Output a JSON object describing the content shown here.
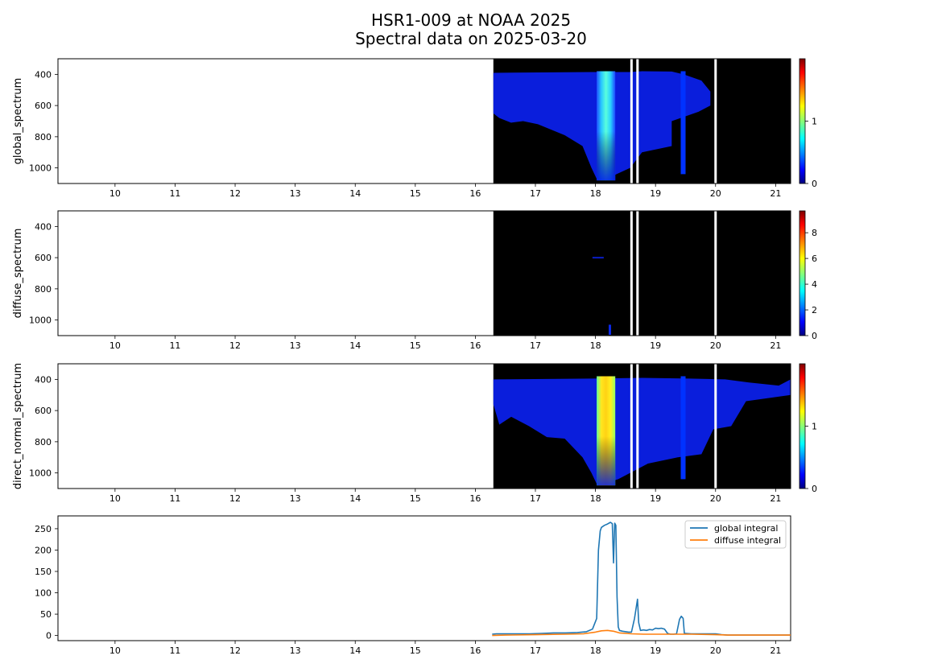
{
  "title_line1": "HSR1-009 at NOAA 2025",
  "title_line2": "Spectral data on 2025-03-20",
  "colors": {
    "data_black": "#000000",
    "spectrum_blue": "#0a1edc",
    "spectrum_cyan": "#1ed2ff",
    "spectrum_yellow": "#ffd21e",
    "global_integral": "#1f77b4",
    "diffuse_integral": "#ff7f0e"
  },
  "chart_data": [
    {
      "type": "heatmap",
      "ylabel": "global_spectrum",
      "x_ticks": [
        "10",
        "11",
        "12",
        "13",
        "14",
        "15",
        "16",
        "17",
        "18",
        "19",
        "20",
        "21"
      ],
      "xlim": [
        9.05,
        21.25
      ],
      "y_ticks": [
        "400",
        "600",
        "800",
        "1000"
      ],
      "ylim": [
        1100,
        300
      ],
      "colorbar_ticks": [
        "0",
        "1"
      ],
      "colorbar_range": [
        0,
        2.0
      ],
      "data_start_hour": 16.3,
      "data_gaps_hours": [
        18.58,
        18.68,
        19.98
      ],
      "bright_band_hours": [
        18.02,
        18.33
      ],
      "colormap": "jet"
    },
    {
      "type": "heatmap",
      "ylabel": "diffuse_spectrum",
      "x_ticks": [
        "10",
        "11",
        "12",
        "13",
        "14",
        "15",
        "16",
        "17",
        "18",
        "19",
        "20",
        "21"
      ],
      "xlim": [
        9.05,
        21.25
      ],
      "y_ticks": [
        "400",
        "600",
        "800",
        "1000"
      ],
      "ylim": [
        1100,
        300
      ],
      "colorbar_ticks": [
        "0",
        "2",
        "4",
        "6",
        "8"
      ],
      "colorbar_range": [
        0,
        9.7
      ],
      "data_start_hour": 16.3,
      "data_gaps_hours": [
        18.58,
        18.68,
        19.98
      ],
      "colormap": "jet"
    },
    {
      "type": "heatmap",
      "ylabel": "direct_normal_spectrum",
      "x_ticks": [
        "10",
        "11",
        "12",
        "13",
        "14",
        "15",
        "16",
        "17",
        "18",
        "19",
        "20",
        "21"
      ],
      "xlim": [
        9.05,
        21.25
      ],
      "y_ticks": [
        "400",
        "600",
        "800",
        "1000"
      ],
      "ylim": [
        1100,
        300
      ],
      "colorbar_ticks": [
        "0",
        "1"
      ],
      "colorbar_range": [
        0,
        2.0
      ],
      "data_start_hour": 16.3,
      "data_gaps_hours": [
        18.58,
        18.68,
        19.98
      ],
      "bright_band_hours": [
        18.02,
        18.33
      ],
      "colormap": "jet"
    },
    {
      "type": "line",
      "x_ticks": [
        "10",
        "11",
        "12",
        "13",
        "14",
        "15",
        "16",
        "17",
        "18",
        "19",
        "20",
        "21"
      ],
      "xlim": [
        9.05,
        21.25
      ],
      "y_ticks": [
        "0",
        "50",
        "100",
        "150",
        "200",
        "250"
      ],
      "ylim": [
        -12,
        280
      ],
      "legend_position": "top-right",
      "series": [
        {
          "name": "global integral",
          "x": [
            16.28,
            16.35,
            16.5,
            16.7,
            16.9,
            17.1,
            17.3,
            17.5,
            17.7,
            17.85,
            17.95,
            18.02,
            18.05,
            18.08,
            18.1,
            18.15,
            18.2,
            18.25,
            18.28,
            18.3,
            18.32,
            18.34,
            18.36,
            18.38,
            18.4,
            18.45,
            18.55,
            18.6,
            18.65,
            18.7,
            18.72,
            18.75,
            18.8,
            18.85,
            18.9,
            18.95,
            19.0,
            19.05,
            19.1,
            19.15,
            19.2,
            19.25,
            19.3,
            19.35,
            19.4,
            19.43,
            19.46,
            19.48,
            19.5,
            19.6,
            19.8,
            20.0,
            20.1,
            20.2,
            20.5,
            21.0,
            21.25
          ],
          "y": [
            3,
            4,
            4,
            4,
            4,
            5,
            6,
            6,
            7,
            9,
            15,
            40,
            200,
            245,
            253,
            258,
            261,
            265,
            262,
            170,
            263,
            258,
            90,
            20,
            12,
            10,
            8,
            8,
            40,
            85,
            30,
            12,
            13,
            12,
            14,
            13,
            17,
            16,
            17,
            15,
            5,
            3,
            3,
            4,
            38,
            45,
            40,
            5,
            5,
            4,
            4,
            4,
            2,
            1,
            1,
            1,
            1
          ]
        },
        {
          "name": "diffuse integral",
          "x": [
            16.28,
            16.5,
            17.0,
            17.5,
            17.8,
            18.0,
            18.1,
            18.2,
            18.3,
            18.4,
            18.6,
            18.8,
            19.0,
            19.4,
            19.6,
            20.0,
            20.2,
            20.5,
            21.0,
            21.25
          ],
          "y": [
            0,
            1,
            2,
            3,
            4,
            8,
            11,
            12,
            10,
            6,
            4,
            3,
            3,
            3,
            3,
            2,
            1,
            1,
            1,
            1
          ]
        }
      ]
    }
  ]
}
